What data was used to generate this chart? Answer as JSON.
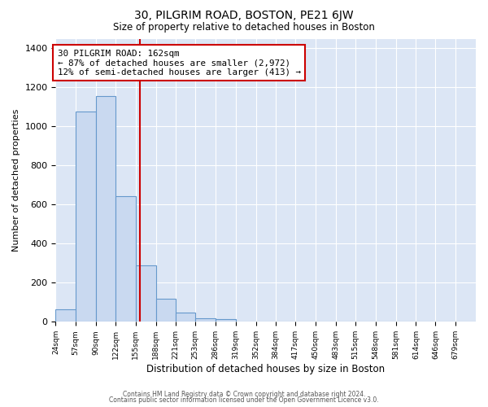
{
  "title": "30, PILGRIM ROAD, BOSTON, PE21 6JW",
  "subtitle": "Size of property relative to detached houses in Boston",
  "xlabel": "Distribution of detached houses by size in Boston",
  "ylabel": "Number of detached properties",
  "xlabels": [
    "24sqm",
    "57sqm",
    "90sqm",
    "122sqm",
    "155sqm",
    "188sqm",
    "221sqm",
    "253sqm",
    "286sqm",
    "319sqm",
    "352sqm",
    "384sqm",
    "417sqm",
    "450sqm",
    "483sqm",
    "515sqm",
    "548sqm",
    "581sqm",
    "614sqm",
    "646sqm",
    "679sqm"
  ],
  "bin_edges": [
    24,
    57,
    90,
    122,
    155,
    188,
    221,
    253,
    286,
    319,
    352,
    384,
    417,
    450,
    483,
    515,
    548,
    581,
    614,
    646,
    679,
    712
  ],
  "heights": [
    65,
    1075,
    1155,
    645,
    290,
    120,
    48,
    20,
    15,
    0,
    0,
    0,
    0,
    0,
    0,
    0,
    0,
    0,
    0,
    0,
    0
  ],
  "ylim": [
    0,
    1450
  ],
  "yticks": [
    0,
    200,
    400,
    600,
    800,
    1000,
    1200,
    1400
  ],
  "bar_color": "#c9d9f0",
  "bar_edge_color": "#6699cc",
  "vline_x": 162,
  "vline_color": "#cc0000",
  "annotation_title": "30 PILGRIM ROAD: 162sqm",
  "annotation_line1": "← 87% of detached houses are smaller (2,972)",
  "annotation_line2": "12% of semi-detached houses are larger (413) →",
  "annotation_box_color": "#ffffff",
  "annotation_box_edge": "#cc0000",
  "footer1": "Contains HM Land Registry data © Crown copyright and database right 2024.",
  "footer2": "Contains public sector information licensed under the Open Government Licence v3.0.",
  "fig_bg_color": "#ffffff",
  "plot_bg_color": "#dce6f5"
}
